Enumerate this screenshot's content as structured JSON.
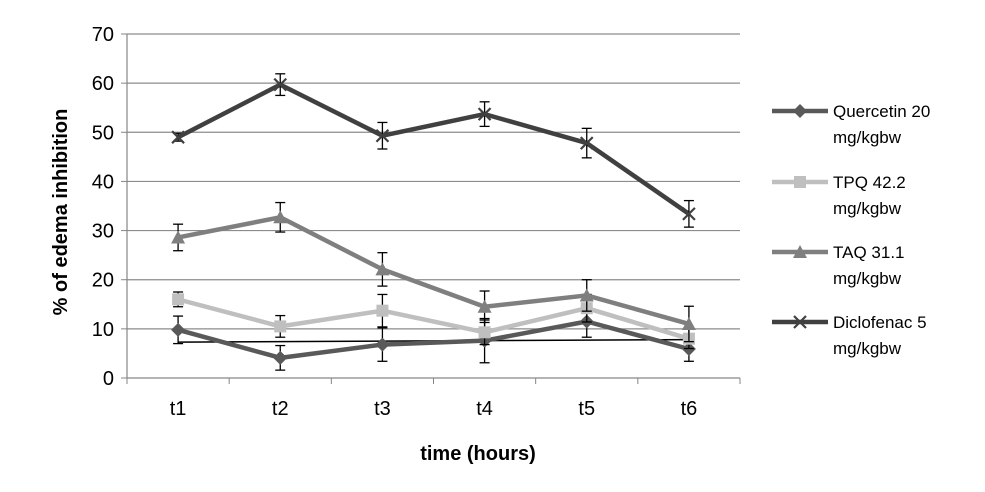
{
  "chart_data": {
    "type": "line",
    "title": "",
    "xlabel": "time (hours)",
    "ylabel": "% of edema inhibition",
    "categories": [
      "t1",
      "t2",
      "t3",
      "t4",
      "t5",
      "t6"
    ],
    "ylim": [
      0,
      70
    ],
    "yticks": [
      0,
      10,
      20,
      30,
      40,
      50,
      60,
      70
    ],
    "grid": true,
    "legend_position": "right",
    "series": [
      {
        "name": "Quercetin 20 mg/kgbw",
        "legend_lines": [
          "Quercetin 20",
          "mg/kgbw"
        ],
        "values": [
          9.8,
          4.1,
          6.8,
          7.6,
          11.5,
          5.9
        ],
        "errors": [
          2.8,
          2.5,
          3.4,
          4.5,
          3.2,
          2.5
        ],
        "color": "#595959",
        "marker": "diamond"
      },
      {
        "name": "TPQ 42.2 mg/kgbw",
        "legend_lines": [
          "TPQ 42.2",
          "mg/kgbw"
        ],
        "values": [
          16.0,
          10.5,
          13.7,
          9.3,
          14.2,
          8.0
        ],
        "errors": [
          1.5,
          2.2,
          3.3,
          2.5,
          2.8,
          2.0
        ],
        "color": "#bfbfbf",
        "marker": "square"
      },
      {
        "name": "TAQ 31.1 mg/kgbw",
        "legend_lines": [
          "TAQ 31.1",
          "mg/kgbw"
        ],
        "values": [
          28.6,
          32.7,
          22.1,
          14.5,
          16.8,
          11.0
        ],
        "errors": [
          2.7,
          3.0,
          3.4,
          3.2,
          3.2,
          3.6
        ],
        "color": "#7f7f7f",
        "marker": "triangle"
      },
      {
        "name": "Diclofenac 5 mg/kgbw",
        "legend_lines": [
          "Diclofenac 5",
          "mg/kgbw"
        ],
        "values": [
          49.0,
          59.7,
          49.3,
          53.7,
          47.8,
          33.4
        ],
        "errors": [
          0.8,
          2.2,
          2.7,
          2.5,
          3.0,
          2.7
        ],
        "color": "#404040",
        "marker": "x"
      }
    ],
    "trendline": {
      "x_from": "t1",
      "x_to": "t6",
      "y_from": 7.3,
      "y_to": 7.8,
      "color": "#000000"
    }
  }
}
